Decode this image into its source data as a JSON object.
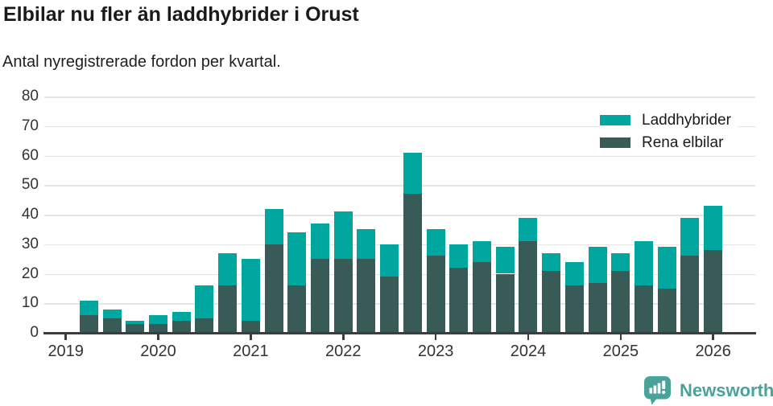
{
  "header": {
    "title": "Elbilar nu fler än laddhybrider i Orust",
    "subtitle": "Antal nyregistrerade fordon per kvartal."
  },
  "legend": {
    "items": [
      {
        "label": "Laddhybrider",
        "color": "#00a79e"
      },
      {
        "label": "Rena elbilar",
        "color": "#395b57"
      }
    ]
  },
  "footer": {
    "brand": "Newsworthy",
    "brand_color": "#4aa29b",
    "logo_icon": "newsworthy-speech-bubble-bar-chart-icon"
  },
  "chart_data": {
    "type": "bar",
    "stacked": true,
    "title": "Elbilar nu fler än laddhybrider i Orust",
    "subtitle": "Antal nyregistrerade fordon per kvartal.",
    "categories": [
      "2019 Q2",
      "2019 Q3",
      "2019 Q4",
      "2020 Q1",
      "2020 Q2",
      "2020 Q3",
      "2020 Q4",
      "2021 Q1",
      "2021 Q2",
      "2021 Q3",
      "2021 Q4",
      "2022 Q1",
      "2022 Q2",
      "2022 Q3",
      "2022 Q4",
      "2023 Q1",
      "2023 Q2",
      "2023 Q3",
      "2023 Q4",
      "2024 Q1",
      "2024 Q2",
      "2024 Q3",
      "2024 Q4",
      "2025 Q1",
      "2025 Q2",
      "2025 Q3",
      "2025 Q4",
      "2026 Q1"
    ],
    "series": [
      {
        "name": "Rena elbilar",
        "color": "#395b57",
        "values": [
          6,
          5,
          3,
          3,
          4,
          5,
          16,
          4,
          30,
          16,
          25,
          25,
          25,
          19,
          47,
          26,
          22,
          24,
          20,
          31,
          21,
          16,
          17,
          21,
          16,
          15,
          26,
          28
        ]
      },
      {
        "name": "Laddhybrider",
        "color": "#00a79e",
        "values": [
          5,
          3,
          1,
          3,
          3,
          11,
          11,
          21,
          12,
          18,
          12,
          16,
          10,
          11,
          14,
          9,
          8,
          7,
          9,
          8,
          6,
          8,
          12,
          6,
          15,
          14,
          13,
          15
        ]
      }
    ],
    "totals": [
      11,
      8,
      4,
      6,
      7,
      16,
      27,
      25,
      42,
      34,
      37,
      41,
      35,
      30,
      61,
      35,
      30,
      31,
      29,
      39,
      27,
      24,
      29,
      27,
      31,
      29,
      39,
      43
    ],
    "xlabel": "",
    "ylabel": "",
    "ylim": [
      0,
      80
    ],
    "yticks": [
      0,
      10,
      20,
      30,
      40,
      50,
      60,
      70,
      80
    ],
    "xticks": [
      "2019",
      "2020",
      "2021",
      "2022",
      "2023",
      "2024",
      "2025",
      "2026"
    ],
    "grid": true,
    "legend_position": "top-right",
    "colors": {
      "grid": "#e5e5e5",
      "axis": "#3d3d3d",
      "tick_text": "#333333"
    }
  }
}
